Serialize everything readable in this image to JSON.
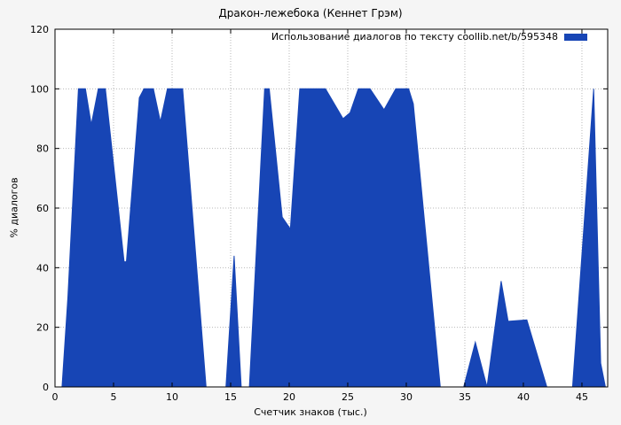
{
  "chart_data": {
    "type": "area",
    "title": "Дракон-лежебока (Кеннет Грэм)",
    "xlabel": "Счетчик знаков (тыс.)",
    "ylabel": "% диалогов",
    "xlim": [
      0,
      47.2
    ],
    "ylim": [
      0,
      120
    ],
    "xticks": [
      0,
      5,
      10,
      15,
      20,
      25,
      30,
      35,
      40,
      45
    ],
    "yticks": [
      0,
      20,
      40,
      60,
      80,
      100,
      120
    ],
    "grid": true,
    "legend_position": "top-right-inside",
    "background_color": "#f5f5f5",
    "plot_background_color": "#ffffff",
    "grid_color": "#b8b8b8",
    "series": [
      {
        "name": "Использование диалогов по тексту coollib.net/b/595348",
        "color": "#1745b5",
        "points": [
          [
            0,
            0
          ],
          [
            0.6,
            0
          ],
          [
            1.1,
            30
          ],
          [
            2.0,
            100
          ],
          [
            2.6,
            100
          ],
          [
            3.1,
            88
          ],
          [
            3.7,
            100
          ],
          [
            4.3,
            100
          ],
          [
            5.9,
            42
          ],
          [
            6.1,
            42
          ],
          [
            7.2,
            97
          ],
          [
            7.6,
            100
          ],
          [
            8.4,
            100
          ],
          [
            9.0,
            89
          ],
          [
            9.6,
            100
          ],
          [
            10.9,
            100
          ],
          [
            12.9,
            0
          ],
          [
            14.6,
            0
          ],
          [
            15.3,
            44
          ],
          [
            15.9,
            0
          ],
          [
            16.6,
            0
          ],
          [
            17.9,
            100
          ],
          [
            18.3,
            100
          ],
          [
            19.4,
            57
          ],
          [
            20.1,
            53
          ],
          [
            20.9,
            100
          ],
          [
            23.1,
            100
          ],
          [
            24.6,
            90
          ],
          [
            25.2,
            92
          ],
          [
            25.9,
            100
          ],
          [
            26.9,
            100
          ],
          [
            28.1,
            93
          ],
          [
            29.1,
            100
          ],
          [
            30.2,
            100
          ],
          [
            30.6,
            95
          ],
          [
            32.9,
            0
          ],
          [
            34.9,
            0
          ],
          [
            35.9,
            15
          ],
          [
            36.9,
            0
          ],
          [
            38.1,
            35.5
          ],
          [
            38.7,
            22
          ],
          [
            40.3,
            22.5
          ],
          [
            42.0,
            0
          ],
          [
            44.2,
            0
          ],
          [
            46.0,
            100
          ],
          [
            46.6,
            8
          ],
          [
            47.0,
            0
          ]
        ]
      }
    ]
  }
}
